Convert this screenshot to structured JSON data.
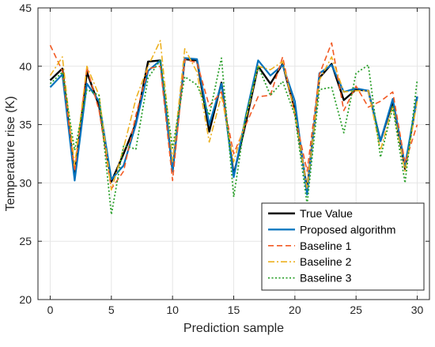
{
  "chart_data": {
    "type": "line",
    "xlabel": "Prediction sample",
    "ylabel": "Temperature rise (K)",
    "xlim": [
      -1,
      31
    ],
    "ylim": [
      20,
      45
    ],
    "xticks": [
      0,
      5,
      10,
      15,
      20,
      25,
      30
    ],
    "yticks": [
      20,
      25,
      30,
      35,
      40,
      45
    ],
    "grid": true,
    "legend_position": "bottom-right",
    "x": [
      0,
      1,
      2,
      3,
      4,
      5,
      6,
      7,
      8,
      9,
      10,
      11,
      12,
      13,
      14,
      15,
      16,
      17,
      18,
      19,
      20,
      21,
      22,
      23,
      24,
      25,
      26,
      27,
      28,
      29,
      30
    ],
    "series": [
      {
        "name": "True Value",
        "color": "#000000",
        "style": "solid",
        "width": 2.4,
        "values": [
          38.8,
          39.8,
          30.6,
          39.5,
          36.6,
          30.1,
          32.5,
          35.1,
          40.4,
          40.5,
          31.0,
          40.6,
          40.5,
          34.4,
          38.6,
          30.7,
          35.2,
          40.0,
          38.5,
          40.2,
          36.2,
          29.4,
          39.0,
          40.2,
          37.1,
          38.0,
          37.9,
          33.6,
          37.0,
          31.2,
          37.4
        ]
      },
      {
        "name": "Proposed algorithm",
        "color": "#0072bd",
        "style": "solid",
        "width": 2.2,
        "values": [
          38.2,
          39.3,
          30.2,
          38.5,
          37.0,
          30.3,
          31.5,
          35.0,
          39.6,
          40.5,
          31.0,
          40.7,
          40.6,
          35.0,
          38.5,
          30.5,
          35.8,
          40.5,
          39.2,
          40.1,
          37.0,
          29.0,
          39.4,
          40.1,
          37.8,
          38.1,
          37.9,
          33.6,
          37.2,
          31.5,
          37.4
        ]
      },
      {
        "name": "Baseline 1",
        "color": "#f25a24",
        "style": "dashed",
        "width": 1.6,
        "values": [
          41.8,
          39.6,
          31.0,
          39.9,
          36.2,
          29.5,
          31.0,
          35.8,
          39.8,
          40.0,
          30.2,
          40.6,
          40.3,
          36.6,
          37.8,
          32.5,
          35.0,
          37.4,
          37.5,
          40.8,
          35.8,
          31.0,
          39.3,
          42.0,
          36.2,
          38.3,
          36.5,
          37.0,
          37.8,
          31.7,
          35.0
        ]
      },
      {
        "name": "Baseline 2",
        "color": "#edb120",
        "style": "dashdot",
        "width": 1.6,
        "values": [
          39.2,
          40.8,
          31.5,
          40.0,
          37.5,
          29.4,
          33.0,
          37.2,
          40.0,
          42.2,
          31.8,
          41.5,
          39.5,
          33.5,
          37.5,
          31.8,
          35.5,
          40.0,
          39.7,
          40.4,
          36.0,
          29.5,
          38.8,
          40.8,
          37.8,
          37.9,
          37.9,
          32.8,
          36.6,
          31.0,
          37.0
        ]
      },
      {
        "name": "Baseline 3",
        "color": "#2ca02c",
        "style": "dotted",
        "width": 1.8,
        "values": [
          38.5,
          39.5,
          32.8,
          38.0,
          37.5,
          27.3,
          33.2,
          32.9,
          39.0,
          40.5,
          33.0,
          39.1,
          38.4,
          35.8,
          40.7,
          28.8,
          35.8,
          40.0,
          37.5,
          38.7,
          35.8,
          28.2,
          38.0,
          38.2,
          34.3,
          39.4,
          40.1,
          32.2,
          36.5,
          30.0,
          38.8
        ]
      }
    ]
  }
}
